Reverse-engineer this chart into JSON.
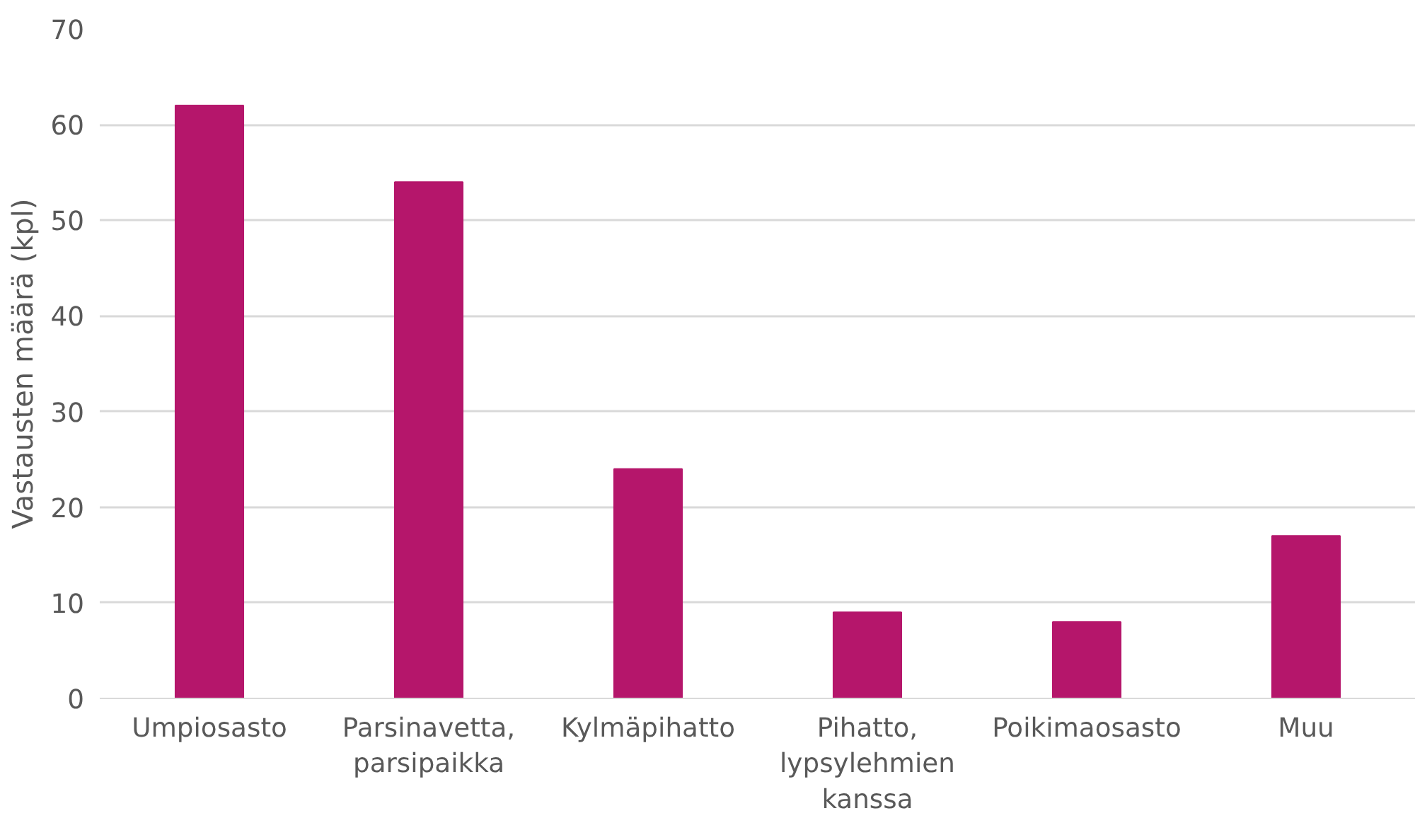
{
  "chart_data": {
    "type": "bar",
    "ylabel": "Vastausten määrä (kpl)",
    "categories": [
      "Umpiosasto",
      "Parsinavetta, parsipaikka",
      "Kylmäpihatto",
      "Pihatto, lypsylehmien kanssa",
      "Poikimaosasto",
      "Muu"
    ],
    "values": [
      62,
      54,
      24,
      9,
      8,
      17
    ],
    "color": "#b5166b",
    "ylim": [
      0,
      70
    ],
    "yticks": [
      0,
      10,
      20,
      30,
      40,
      50,
      60,
      70
    ],
    "grid": "y"
  }
}
